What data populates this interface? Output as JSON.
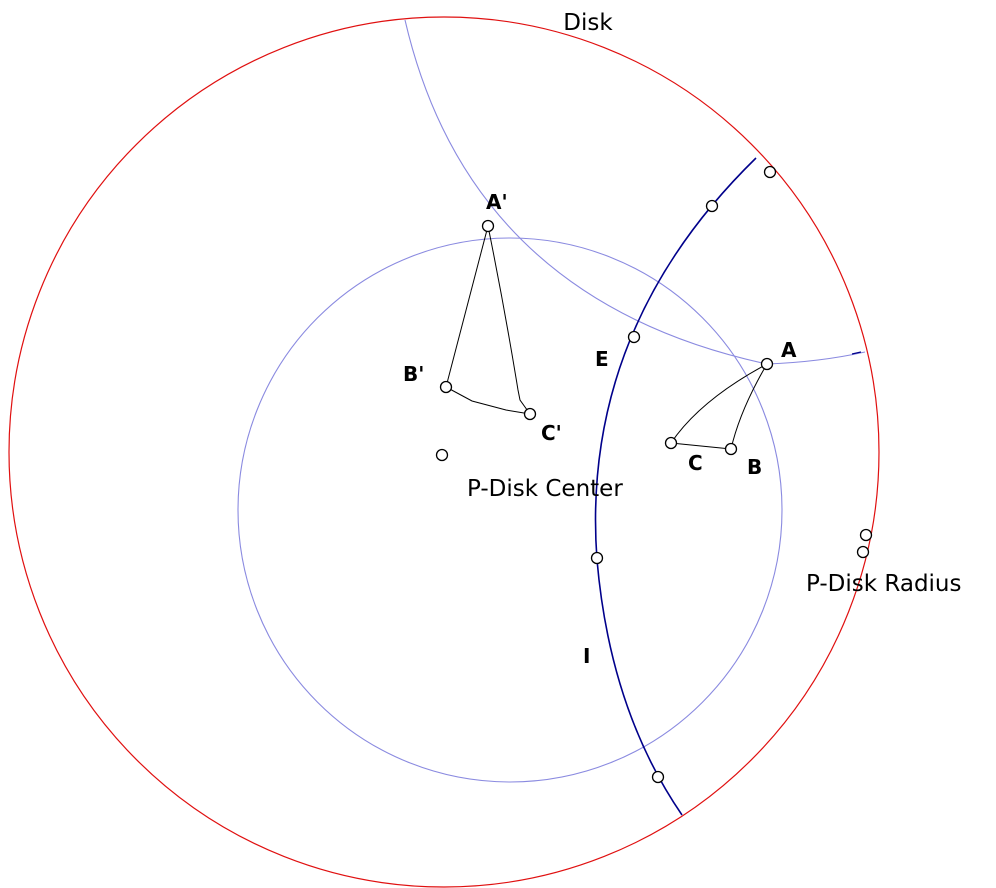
{
  "labels": {
    "disk": "Disk",
    "p_disk_center": "P-Disk Center",
    "p_disk_radius": "P-Disk Radius",
    "point_a": "A",
    "point_b": "B",
    "point_c": "C",
    "point_a_prime": "A'",
    "point_b_prime": "B'",
    "point_c_prime": "C'",
    "point_e": "E",
    "point_i": "I"
  },
  "colors": {
    "disk_circle": "#e01010",
    "construction_arc": "#8a8ae0",
    "geodesic_line": "#00008b",
    "triangle_edges": "#000000",
    "point_fill": "#ffffff",
    "point_stroke": "#000000"
  }
}
